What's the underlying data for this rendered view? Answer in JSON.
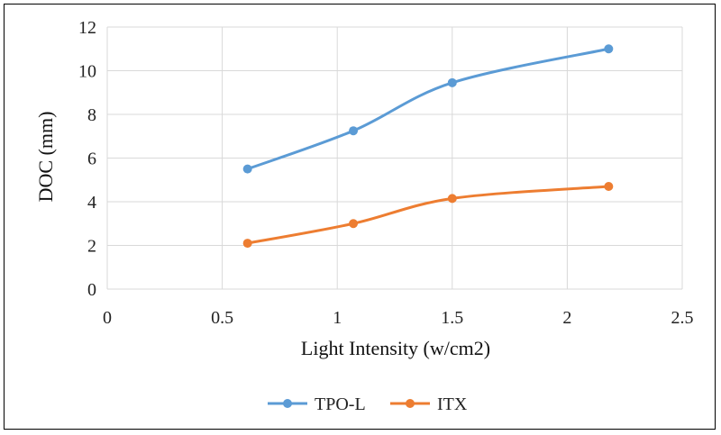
{
  "chart_data": {
    "type": "line",
    "title": "",
    "xlabel": "Light Intensity (w/cm2)",
    "ylabel": "DOC (mm)",
    "xlim": [
      0,
      2.5
    ],
    "ylim": [
      0,
      12
    ],
    "xticks": [
      0,
      0.5,
      1,
      1.5,
      2,
      2.5
    ],
    "xtick_labels": [
      "0",
      "0.5",
      "1",
      "1.5",
      "2",
      "2.5"
    ],
    "yticks": [
      0,
      2,
      4,
      6,
      8,
      10,
      12
    ],
    "ytick_labels": [
      "0",
      "2",
      "4",
      "6",
      "8",
      "10",
      "12"
    ],
    "grid": true,
    "legend_position": "bottom",
    "series": [
      {
        "name": "TPO-L",
        "color": "#5b9bd5",
        "x": [
          0.61,
          1.07,
          1.5,
          2.18
        ],
        "y": [
          5.5,
          7.25,
          9.45,
          11.0
        ]
      },
      {
        "name": "ITX",
        "color": "#ed7d31",
        "x": [
          0.61,
          1.07,
          1.5,
          2.18
        ],
        "y": [
          2.1,
          3.0,
          4.15,
          4.7
        ]
      }
    ]
  }
}
